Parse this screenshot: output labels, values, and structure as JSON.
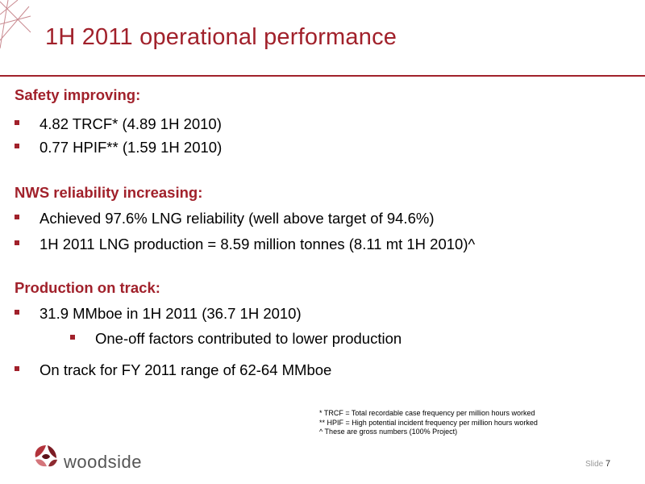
{
  "title": "1H 2011 operational performance",
  "colors": {
    "accent": "#a1212b",
    "text": "#000000",
    "logo_text": "#555555"
  },
  "sections": [
    {
      "heading": "Safety improving:",
      "bullets": [
        "4.82 TRCF* (4.89 1H 2010)",
        "0.77 HPIF** (1.59 1H 2010)"
      ]
    },
    {
      "heading": "NWS reliability increasing:",
      "bullets": [
        "Achieved 97.6% LNG reliability (well above target of 94.6%)",
        "1H 2011 LNG production = 8.59 million tonnes (8.11 mt 1H 2010)^"
      ]
    },
    {
      "heading": "Production on track:",
      "bullets": [
        "31.9 MMboe in 1H 2011 (36.7 1H 2010)",
        "One-off factors contributed to lower production",
        "On track for FY 2011 range of 62-64 MMboe"
      ]
    }
  ],
  "footnotes": [
    "*  TRCF = Total recordable case frequency per million hours worked",
    "** HPIF = High potential incident frequency per million hours worked",
    "^  These are gross numbers (100% Project)"
  ],
  "logo": {
    "text": "woodside",
    "icon": "woodside-logo-icon"
  },
  "slide": {
    "label": "Slide",
    "number": "7"
  }
}
